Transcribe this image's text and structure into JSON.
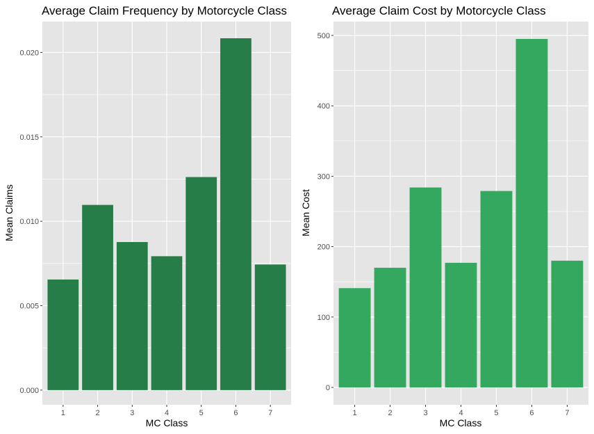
{
  "colors": {
    "panel_bg": "#e5e5e5",
    "grid": "#ffffff",
    "frequency_bar": "#267d47",
    "cost_bar": "#33a85e"
  },
  "chart_data": [
    {
      "type": "bar",
      "title": "Average Claim Frequency by Motorcycle Class",
      "xlabel": "MC Class",
      "ylabel": "Mean Claims",
      "categories": [
        "1",
        "2",
        "3",
        "4",
        "5",
        "6",
        "7"
      ],
      "values": [
        0.00655,
        0.01097,
        0.00877,
        0.00793,
        0.01262,
        0.02084,
        0.00744
      ],
      "ylim": [
        -0.00087,
        0.02183
      ],
      "yticks": [
        0.0,
        0.005,
        0.01,
        0.015,
        0.02
      ],
      "ytick_labels": [
        "0.000",
        "0.005",
        "0.010",
        "0.015",
        "0.020"
      ],
      "grid": true,
      "legend": "none"
    },
    {
      "type": "bar",
      "title": "Average Claim Cost by Motorcycle Class",
      "xlabel": "MC Class",
      "ylabel": "Mean Cost",
      "categories": [
        "1",
        "2",
        "3",
        "4",
        "5",
        "6",
        "7"
      ],
      "values": [
        141,
        170,
        284,
        177,
        279,
        495,
        180
      ],
      "ylim": [
        -24.7,
        519.7
      ],
      "yticks": [
        0,
        100,
        200,
        300,
        400,
        500
      ],
      "ytick_labels": [
        "0",
        "100",
        "200",
        "300",
        "400",
        "500"
      ],
      "grid": true,
      "legend": "none"
    }
  ]
}
